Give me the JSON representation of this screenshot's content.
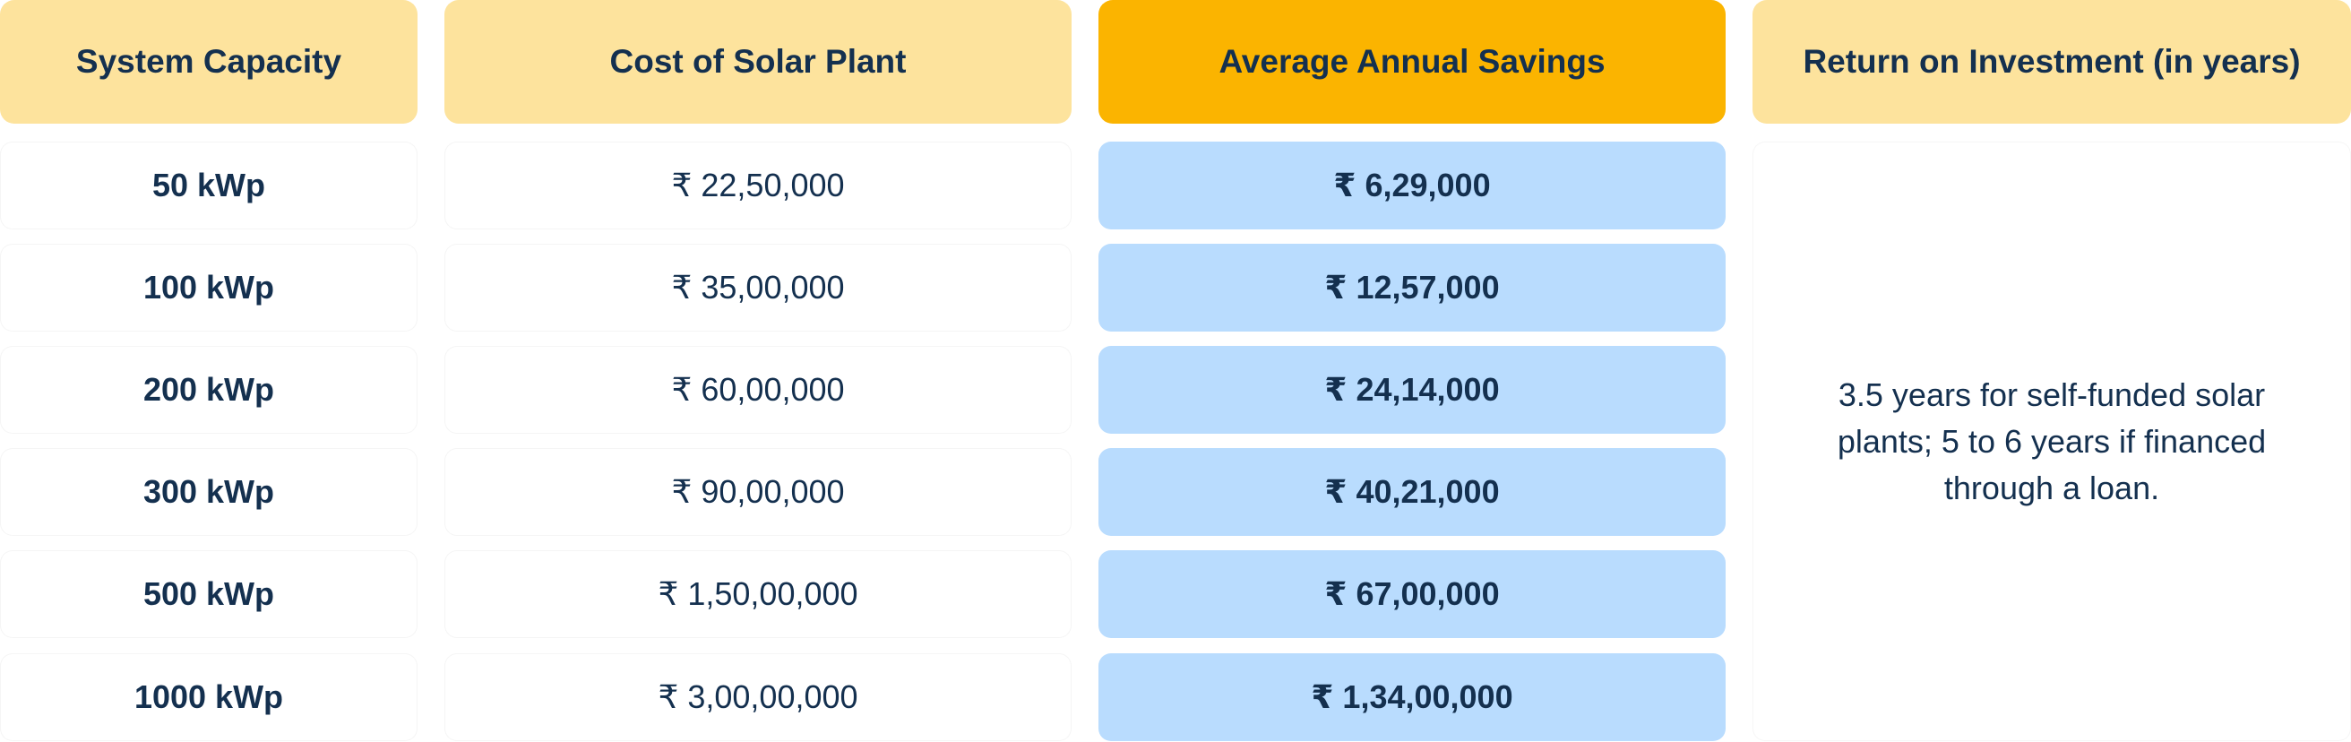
{
  "headers": {
    "capacity": "System Capacity",
    "cost": "Cost of Solar Plant",
    "savings": "Average Annual Savings",
    "roi": "Return on Investment (in years)"
  },
  "rows": [
    {
      "capacity": "50 kWp",
      "cost": "₹ 22,50,000",
      "savings": "₹ 6,29,000"
    },
    {
      "capacity": "100 kWp",
      "cost": "₹ 35,00,000",
      "savings": "₹ 12,57,000"
    },
    {
      "capacity": "200 kWp",
      "cost": "₹ 60,00,000",
      "savings": "₹ 24,14,000"
    },
    {
      "capacity": "300 kWp",
      "cost": "₹ 90,00,000",
      "savings": "₹ 40,21,000"
    },
    {
      "capacity": "500 kWp",
      "cost": "₹ 1,50,00,000",
      "savings": "₹ 67,00,000"
    },
    {
      "capacity": "1000 kWp",
      "cost": "₹ 3,00,00,000",
      "savings": "₹ 1,34,00,000"
    }
  ],
  "roi_text": "3.5 years for self-funded solar plants; 5 to 6 years if financed through a loan.",
  "colors": {
    "header_light": "#fde39d",
    "header_accent": "#fbb400",
    "savings_cell": "#b9dcfe",
    "text": "#14304f"
  }
}
